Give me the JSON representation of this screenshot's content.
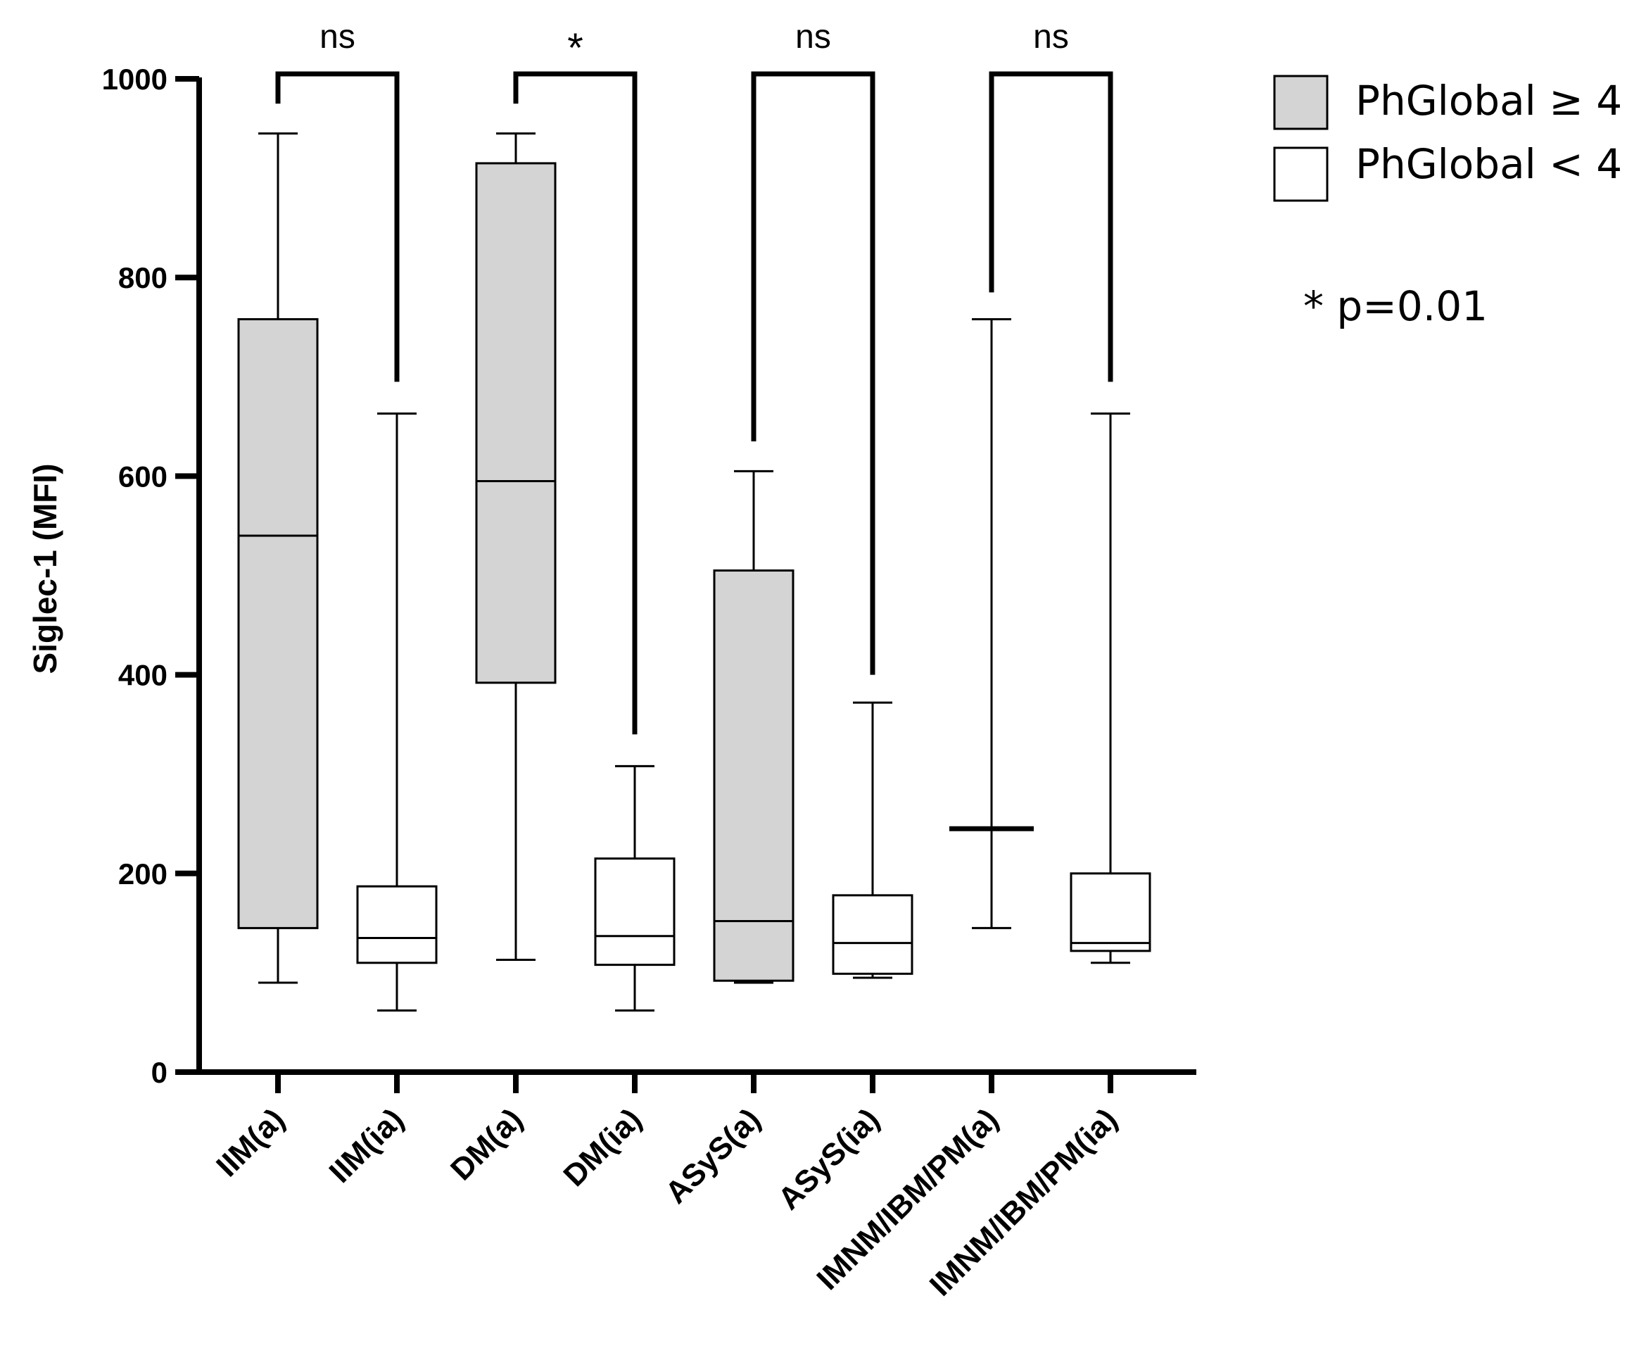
{
  "chart_data": {
    "type": "boxplot",
    "ylabel": "Siglec-1 (MFI)",
    "ylim": [
      0,
      1000
    ],
    "yticks": [
      0,
      200,
      400,
      600,
      800,
      1000
    ],
    "categories": [
      "IIM(a)",
      "IIM(ia)",
      "DM(a)",
      "DM(ia)",
      "ASyS(a)",
      "ASyS(ia)",
      "IMNM/IBM/PM(a)",
      "IMNM/IBM/PM(ia)"
    ],
    "boxes": [
      {
        "group": "PhGlobal ≥ 4",
        "min": 90,
        "q1": 145,
        "median": 540,
        "q3": 758,
        "max": 945
      },
      {
        "group": "PhGlobal < 4",
        "min": 62,
        "q1": 110,
        "median": 135,
        "q3": 187,
        "max": 663
      },
      {
        "group": "PhGlobal ≥ 4",
        "min": 113,
        "q1": 392,
        "median": 595,
        "q3": 915,
        "max": 945
      },
      {
        "group": "PhGlobal < 4",
        "min": 62,
        "q1": 108,
        "median": 137,
        "q3": 215,
        "max": 308
      },
      {
        "group": "PhGlobal ≥ 4",
        "min": 90,
        "q1": 92,
        "median": 152,
        "q3": 505,
        "max": 605
      },
      {
        "group": "PhGlobal < 4",
        "min": 95,
        "q1": 99,
        "median": 130,
        "q3": 178,
        "max": 372
      },
      {
        "group": "PhGlobal ≥ 4",
        "min": 145,
        "q1": 245,
        "median": 245,
        "q3": 245,
        "max": 758
      },
      {
        "group": "PhGlobal < 4",
        "min": 110,
        "q1": 122,
        "median": 130,
        "q3": 200,
        "max": 663
      }
    ],
    "comparisons": [
      {
        "from": "IIM(a)",
        "to": "IIM(ia)",
        "label": "ns",
        "y_data_left": 975,
        "y_data_right": 695
      },
      {
        "from": "DM(a)",
        "to": "DM(ia)",
        "label": "*",
        "y_data_left": 975,
        "y_data_right": 340
      },
      {
        "from": "ASyS(a)",
        "to": "ASyS(ia)",
        "label": "ns",
        "y_data_left": 635,
        "y_data_right": 400
      },
      {
        "from": "IMNM/IBM/PM(a)",
        "to": "IMNM/IBM/PM(ia)",
        "label": "ns",
        "y_data_left": 785,
        "y_data_right": 695
      }
    ],
    "legend": [
      {
        "label": "PhGlobal ≥ 4",
        "color": "#d4d4d4"
      },
      {
        "label": "PhGlobal < 4",
        "color": "#ffffff"
      }
    ],
    "note": "* p=0.01",
    "legend_position": "top-right"
  }
}
